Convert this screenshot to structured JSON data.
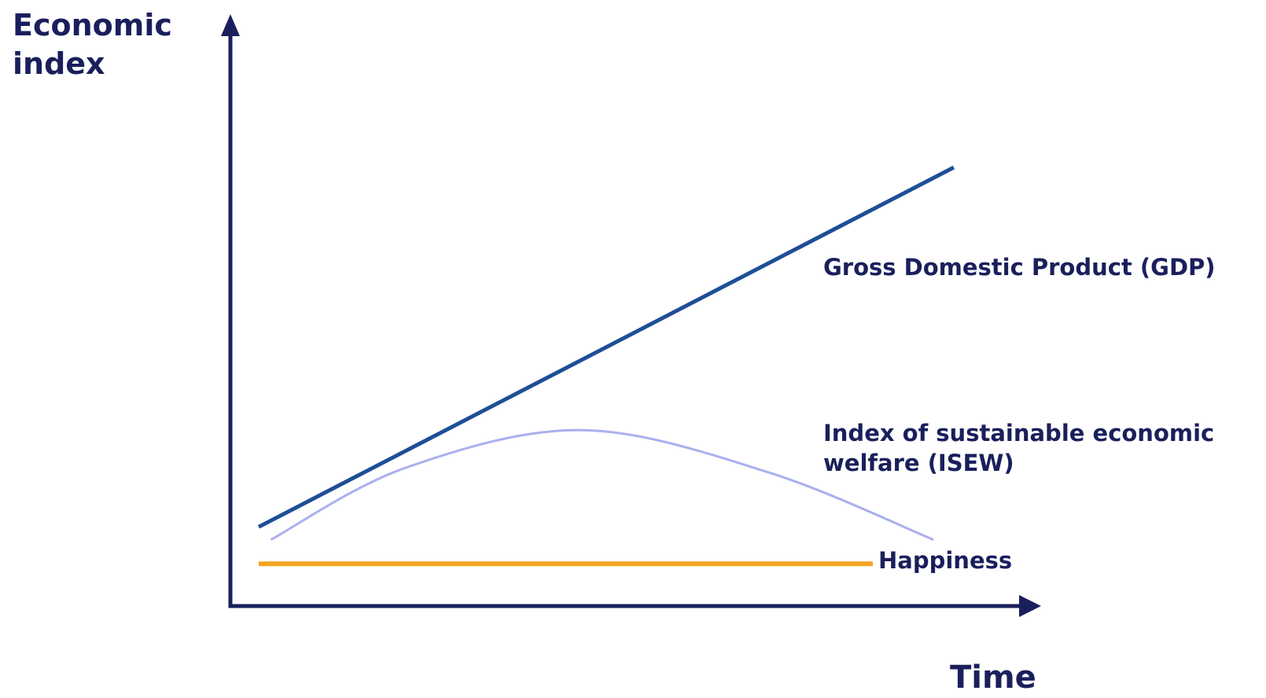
{
  "chart_data": {
    "type": "line",
    "y_label": "Economic index",
    "x_label": "Time",
    "xlim": [
      0,
      100
    ],
    "ylim": [
      0,
      100
    ],
    "series": [
      {
        "name": "Gross Domestic Product (GDP)",
        "color": "#1f4e96",
        "width": 5,
        "x": [
          3.5,
          89.4
        ],
        "values": [
          13.5,
          74.8
        ]
      },
      {
        "name": "Index of sustainable economic welfare (ISEW)",
        "color": "#aab0ee",
        "width": 3,
        "x": [
          5,
          21.5,
          43.4,
          66.5,
          86.9
        ],
        "values": [
          11.3,
          23.5,
          30,
          22.8,
          11.3
        ]
      },
      {
        "name": "Happiness",
        "color": "#f5a623",
        "width": 6,
        "x": [
          3.5,
          79.4
        ],
        "values": [
          7.2,
          7.2
        ]
      }
    ]
  }
}
